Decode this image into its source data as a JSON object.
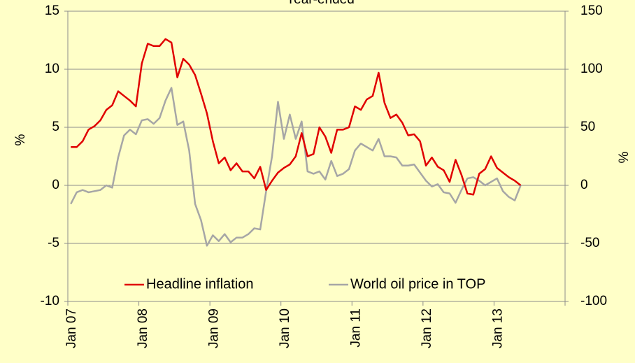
{
  "chart_data": {
    "type": "line",
    "title": "Year-ended",
    "categories": [
      "Jan 07",
      null,
      null,
      null,
      null,
      null,
      null,
      null,
      null,
      null,
      null,
      null,
      "Jan 08",
      null,
      null,
      null,
      null,
      null,
      null,
      null,
      null,
      null,
      null,
      null,
      "Jan 09",
      null,
      null,
      null,
      null,
      null,
      null,
      null,
      null,
      null,
      null,
      null,
      "Jan 10",
      null,
      null,
      null,
      null,
      null,
      null,
      null,
      null,
      null,
      null,
      null,
      "Jan 11",
      null,
      null,
      null,
      null,
      null,
      null,
      null,
      null,
      null,
      null,
      null,
      "Jan 12",
      null,
      null,
      null,
      null,
      null,
      null,
      null,
      null,
      null,
      null,
      null,
      "Jan 13",
      null,
      null,
      null,
      null,
      null,
      null,
      null,
      null,
      null,
      null,
      null
    ],
    "series": [
      {
        "name": "Headline inflation",
        "color": "#e00000",
        "values": [
          3.3,
          3.3,
          3.8,
          4.8,
          5.1,
          5.6,
          6.5,
          6.9,
          8.1,
          7.7,
          7.3,
          6.8,
          10.5,
          12.2,
          12.0,
          12.0,
          12.6,
          12.3,
          9.3,
          10.9,
          10.4,
          9.5,
          7.9,
          6.2,
          3.8,
          1.9,
          2.4,
          1.3,
          1.9,
          1.2,
          1.2,
          0.6,
          1.6,
          -0.4,
          0.4,
          1.1,
          1.5,
          1.8,
          2.5,
          4.5,
          2.5,
          2.7,
          5.0,
          4.2,
          2.8,
          4.8,
          4.8,
          5.0,
          6.8,
          6.5,
          7.4,
          7.7,
          9.7,
          7.1,
          5.8,
          6.1,
          5.4,
          4.3,
          4.4,
          3.8,
          1.7,
          2.4,
          1.6,
          1.3,
          0.3,
          2.2,
          0.9,
          -0.7,
          -0.8,
          1.0,
          1.4,
          2.5,
          1.5,
          1.1,
          0.7,
          0.4,
          0.0,
          null,
          null,
          null,
          null,
          null,
          null,
          null
        ]
      },
      {
        "name": "World oil price in TOP",
        "color": "#a6a6a6",
        "axis": "y2",
        "values": [
          -16,
          -6,
          -4,
          -6,
          -5,
          -4,
          0,
          -2,
          24,
          43,
          48,
          44,
          56,
          57,
          53,
          58,
          73,
          84,
          52,
          55,
          30,
          -16,
          -30,
          -52,
          -43,
          -48,
          -42,
          -49,
          -45,
          -45,
          -42,
          -37,
          -38,
          -5,
          25,
          72,
          40,
          61,
          40,
          55,
          12,
          10,
          12,
          5,
          21,
          8,
          10,
          14,
          30,
          36,
          33,
          30,
          40,
          25,
          25,
          24,
          17,
          17,
          18,
          11,
          4,
          -1,
          1,
          -6,
          -7,
          -15,
          -4,
          6,
          7,
          4,
          0,
          3,
          6,
          -5,
          -10,
          -13,
          0,
          null,
          null,
          null,
          null,
          null,
          null,
          null
        ]
      }
    ],
    "ylabel": "%",
    "y2label": "%",
    "ylim": [
      -10,
      15
    ],
    "yticks": [
      -10,
      -5,
      0,
      5,
      10,
      15
    ],
    "y2lim": [
      -100,
      150
    ],
    "y2ticks": [
      -100,
      -50,
      0,
      50,
      100,
      150
    ],
    "grid": true,
    "legend": "bottom"
  }
}
